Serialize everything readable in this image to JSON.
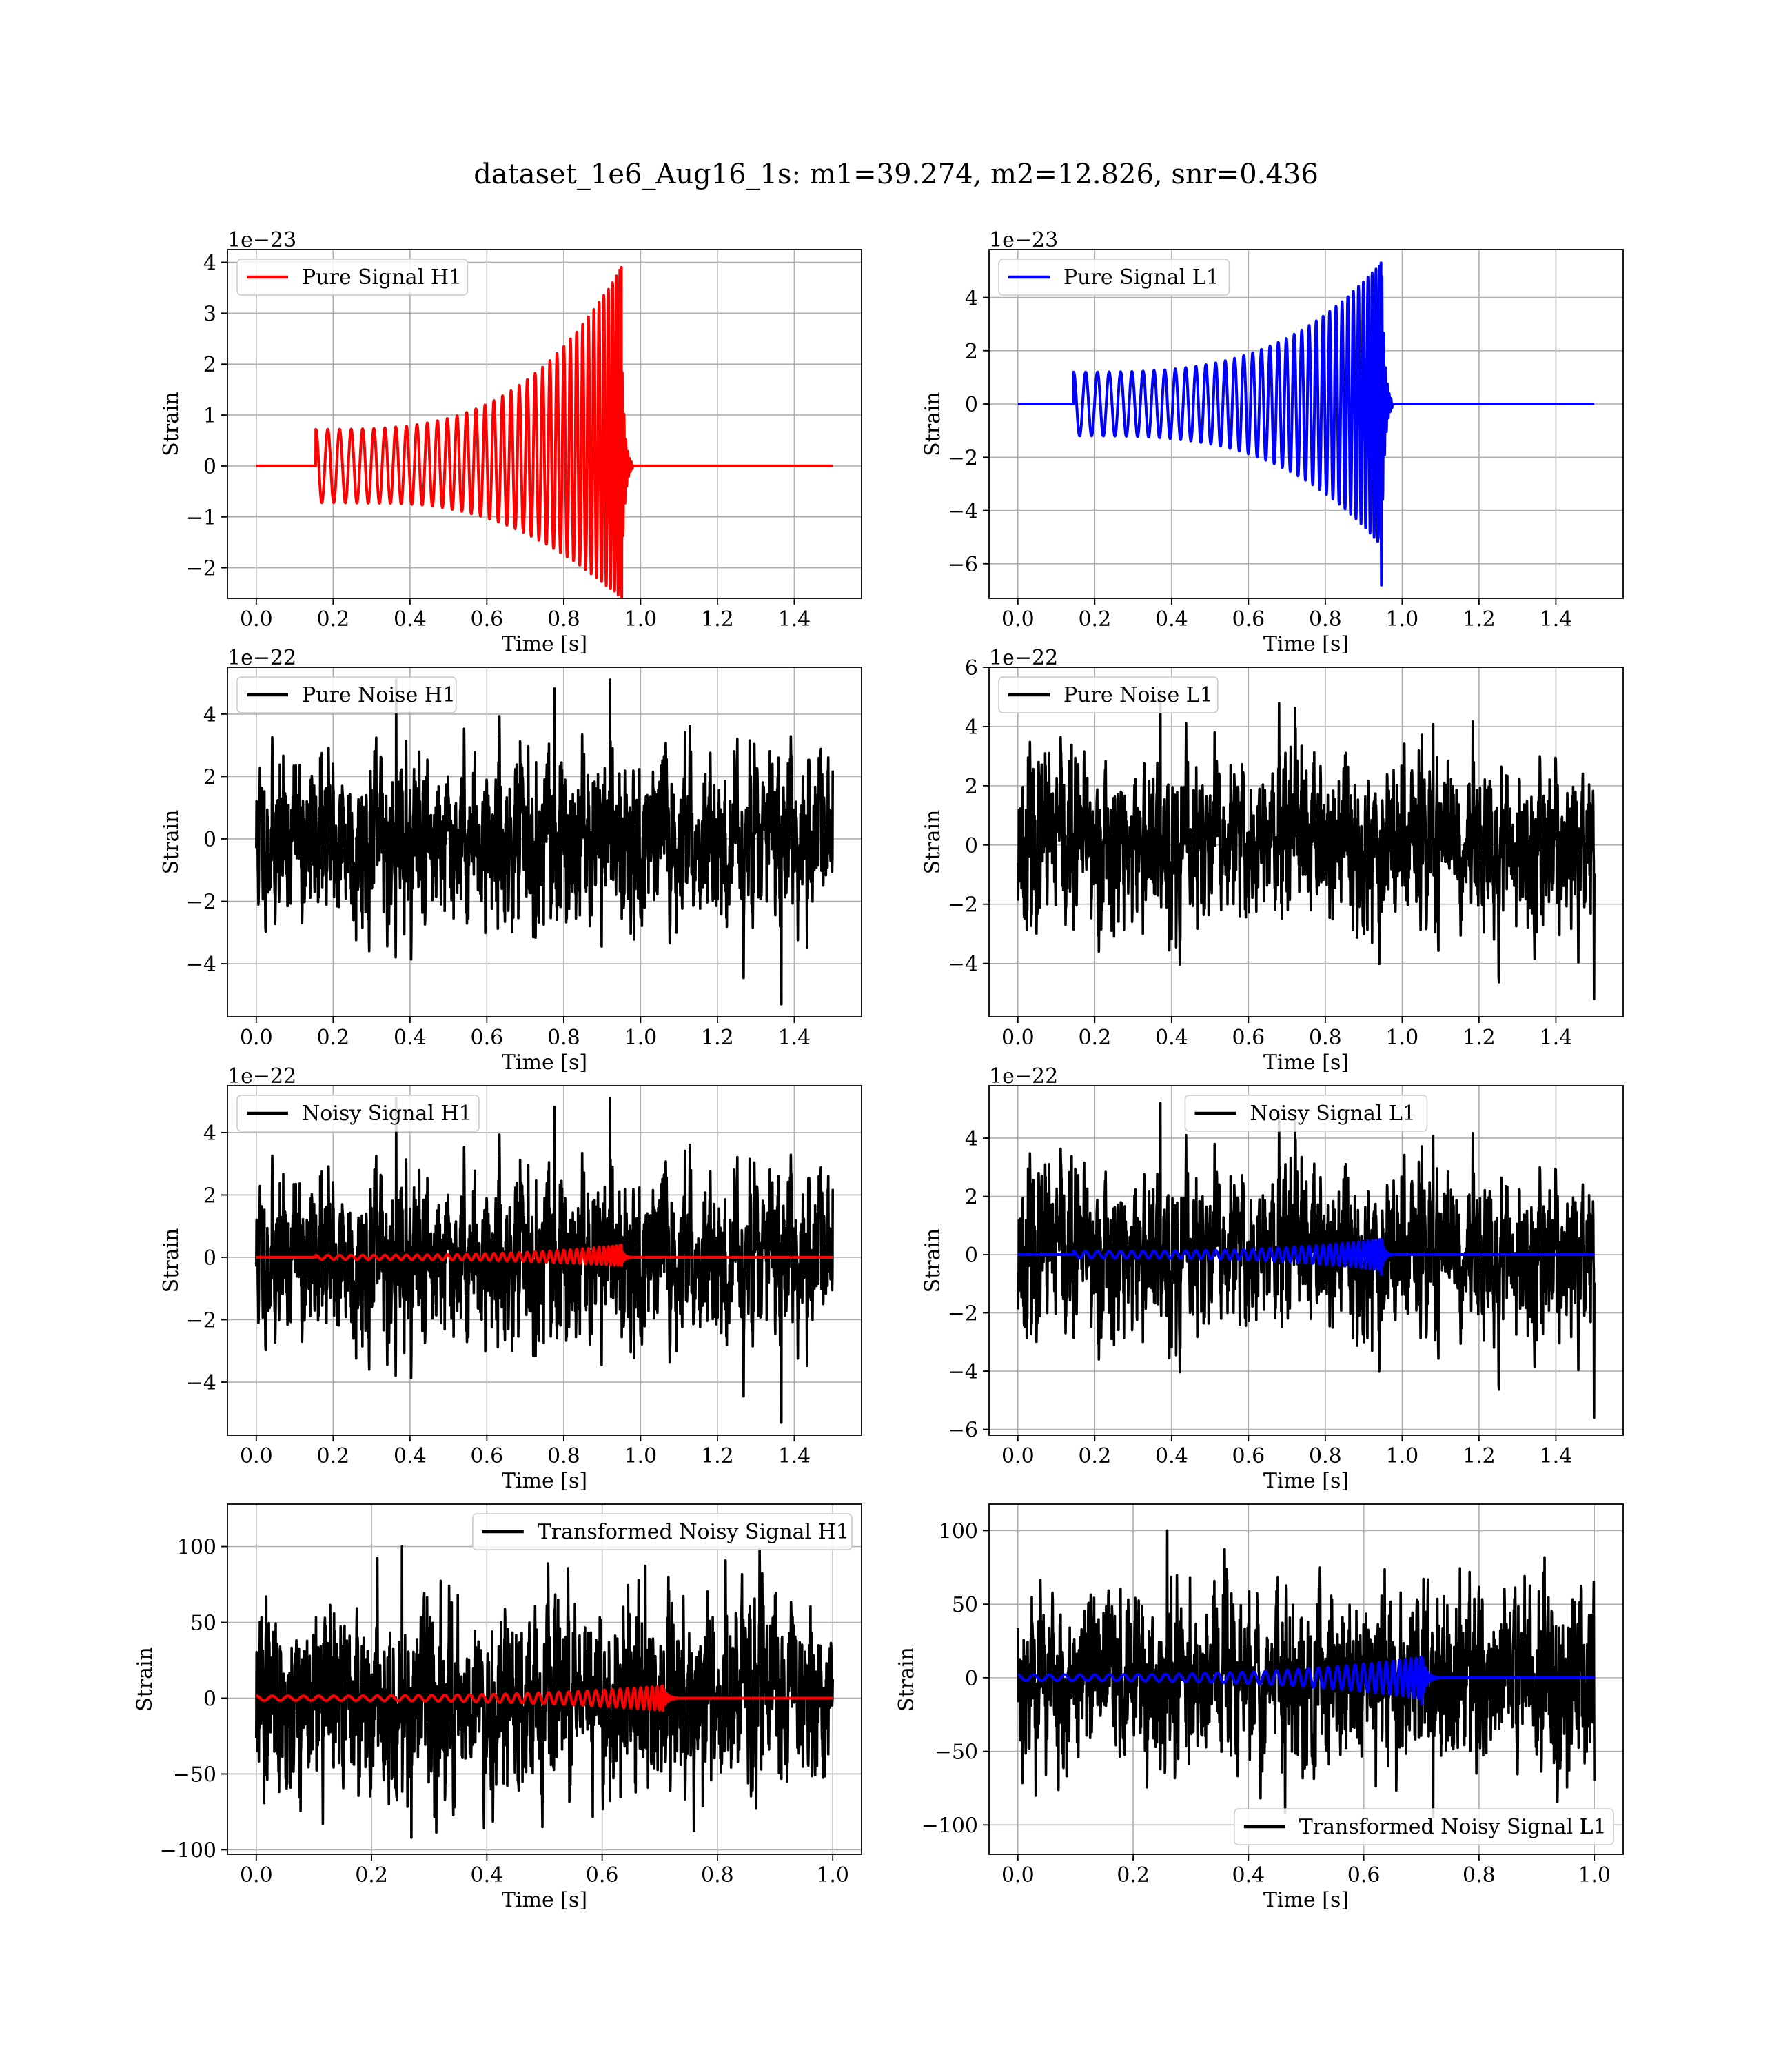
{
  "title": "dataset_1e6_Aug16_1s: m1=39.274, m2=12.826, snr=0.436",
  "colors": {
    "h1_signal": "#ff0000",
    "l1_signal": "#0000ff",
    "noise": "#000000",
    "grid": "#b0b0b0"
  },
  "chart_data": [
    {
      "id": "pure-signal-h1",
      "type": "line",
      "xlabel": "Time [s]",
      "ylabel": "Strain",
      "offset_text": "1e−23",
      "xlim": [
        -0.075,
        1.575
      ],
      "ylim": [
        -2.6,
        4.25
      ],
      "xticks": [
        0.0,
        0.2,
        0.4,
        0.6,
        0.8,
        1.0,
        1.2,
        1.4
      ],
      "xtick_labels": [
        "0.0",
        "0.2",
        "0.4",
        "0.6",
        "0.8",
        "1.0",
        "1.2",
        "1.4"
      ],
      "yticks": [
        -2,
        -1,
        0,
        1,
        2,
        3,
        4
      ],
      "ytick_labels": [
        "−2",
        "−1",
        "0",
        "1",
        "2",
        "3",
        "4"
      ],
      "legend": {
        "label": "Pure Signal H1",
        "loc": "upper left",
        "color": "#ff0000"
      },
      "series": [
        {
          "name": "Pure Signal H1",
          "kind": "chirp",
          "color": "#ff0000",
          "t_start": 0.155,
          "t_merger": 0.95,
          "t_end": 1.5,
          "x_max": 1.5,
          "amp_start": 0.72,
          "amp_peak": 3.9,
          "amp_min_peak": -2.6,
          "cycles": 26
        }
      ]
    },
    {
      "id": "pure-signal-l1",
      "type": "line",
      "xlabel": "Time [s]",
      "ylabel": "Strain",
      "offset_text": "1e−23",
      "xlim": [
        -0.075,
        1.575
      ],
      "ylim": [
        -7.3,
        5.8
      ],
      "xticks": [
        0.0,
        0.2,
        0.4,
        0.6,
        0.8,
        1.0,
        1.2,
        1.4
      ],
      "xtick_labels": [
        "0.0",
        "0.2",
        "0.4",
        "0.6",
        "0.8",
        "1.0",
        "1.2",
        "1.4"
      ],
      "yticks": [
        -6,
        -4,
        -2,
        0,
        2,
        4
      ],
      "ytick_labels": [
        "−6",
        "−4",
        "−2",
        "0",
        "2",
        "4"
      ],
      "legend": {
        "label": "Pure Signal L1",
        "loc": "upper left",
        "color": "#0000ff"
      },
      "series": [
        {
          "name": "Pure Signal L1",
          "kind": "chirp",
          "color": "#0000ff",
          "t_start": 0.145,
          "t_merger": 0.945,
          "t_end": 1.5,
          "x_max": 1.5,
          "amp_start": 1.2,
          "amp_peak": 5.3,
          "amp_min_peak": -6.8,
          "cycles": 26
        }
      ]
    },
    {
      "id": "pure-noise-h1",
      "type": "line",
      "xlabel": "Time [s]",
      "ylabel": "Strain",
      "offset_text": "1e−22",
      "xlim": [
        -0.075,
        1.575
      ],
      "ylim": [
        -5.7,
        5.5
      ],
      "xticks": [
        0.0,
        0.2,
        0.4,
        0.6,
        0.8,
        1.0,
        1.2,
        1.4
      ],
      "xtick_labels": [
        "0.0",
        "0.2",
        "0.4",
        "0.6",
        "0.8",
        "1.0",
        "1.2",
        "1.4"
      ],
      "yticks": [
        -4,
        -2,
        0,
        2,
        4
      ],
      "ytick_labels": [
        "−4",
        "−2",
        "0",
        "2",
        "4"
      ],
      "legend": {
        "label": "Pure Noise H1",
        "loc": "upper left",
        "color": "#000000"
      },
      "series": [
        {
          "name": "Pure Noise H1",
          "kind": "noise",
          "color": "#000000",
          "x_max": 1.5,
          "sigma": 1.25,
          "max": 5.1,
          "min": -5.3,
          "seed": 11
        }
      ]
    },
    {
      "id": "pure-noise-l1",
      "type": "line",
      "xlabel": "Time [s]",
      "ylabel": "Strain",
      "offset_text": "1e−22",
      "xlim": [
        -0.075,
        1.575
      ],
      "ylim": [
        -5.8,
        6.0
      ],
      "xticks": [
        0.0,
        0.2,
        0.4,
        0.6,
        0.8,
        1.0,
        1.2,
        1.4
      ],
      "xtick_labels": [
        "0.0",
        "0.2",
        "0.4",
        "0.6",
        "0.8",
        "1.0",
        "1.2",
        "1.4"
      ],
      "yticks": [
        -4,
        -2,
        0,
        2,
        4,
        6
      ],
      "ytick_labels": [
        "−4",
        "−2",
        "0",
        "2",
        "4",
        "6"
      ],
      "legend": {
        "label": "Pure Noise L1",
        "loc": "upper left",
        "color": "#000000"
      },
      "series": [
        {
          "name": "Pure Noise L1",
          "kind": "noise",
          "color": "#000000",
          "x_max": 1.5,
          "sigma": 1.3,
          "max": 5.2,
          "min": -5.2,
          "seed": 23
        }
      ]
    },
    {
      "id": "noisy-signal-h1",
      "type": "line",
      "xlabel": "Time [s]",
      "ylabel": "Strain",
      "offset_text": "1e−22",
      "xlim": [
        -0.075,
        1.575
      ],
      "ylim": [
        -5.7,
        5.5
      ],
      "xticks": [
        0.0,
        0.2,
        0.4,
        0.6,
        0.8,
        1.0,
        1.2,
        1.4
      ],
      "xtick_labels": [
        "0.0",
        "0.2",
        "0.4",
        "0.6",
        "0.8",
        "1.0",
        "1.2",
        "1.4"
      ],
      "yticks": [
        -4,
        -2,
        0,
        2,
        4
      ],
      "ytick_labels": [
        "−4",
        "−2",
        "0",
        "2",
        "4"
      ],
      "legend": {
        "label": "Noisy Signal H1",
        "loc": "upper left",
        "color": "#000000"
      },
      "series": [
        {
          "name": "Noisy Signal H1",
          "kind": "noise",
          "color": "#000000",
          "x_max": 1.5,
          "sigma": 1.25,
          "max": 5.1,
          "min": -5.3,
          "seed": 11
        },
        {
          "kind": "chirp",
          "color": "#ff0000",
          "t_start": 0.155,
          "t_merger": 0.95,
          "t_end": 1.5,
          "x_max": 1.5,
          "amp_start": 0.07,
          "amp_peak": 0.39,
          "amp_min_peak": -0.26,
          "cycles": 26
        }
      ]
    },
    {
      "id": "noisy-signal-l1",
      "type": "line",
      "xlabel": "Time [s]",
      "ylabel": "Strain",
      "offset_text": "1e−22",
      "xlim": [
        -0.075,
        1.575
      ],
      "ylim": [
        -6.2,
        5.8
      ],
      "xticks": [
        0.0,
        0.2,
        0.4,
        0.6,
        0.8,
        1.0,
        1.2,
        1.4
      ],
      "xtick_labels": [
        "0.0",
        "0.2",
        "0.4",
        "0.6",
        "0.8",
        "1.0",
        "1.2",
        "1.4"
      ],
      "yticks": [
        -6,
        -4,
        -2,
        0,
        2,
        4
      ],
      "ytick_labels": [
        "−6",
        "−4",
        "−2",
        "0",
        "2",
        "4"
      ],
      "legend": {
        "label": "Noisy Signal L1",
        "loc": "upper center",
        "color": "#000000"
      },
      "series": [
        {
          "name": "Noisy Signal L1",
          "kind": "noise",
          "color": "#000000",
          "x_max": 1.5,
          "sigma": 1.3,
          "max": 5.2,
          "min": -5.6,
          "seed": 23
        },
        {
          "kind": "chirp",
          "color": "#0000ff",
          "t_start": 0.145,
          "t_merger": 0.945,
          "t_end": 1.5,
          "x_max": 1.5,
          "amp_start": 0.12,
          "amp_peak": 0.53,
          "amp_min_peak": -0.68,
          "cycles": 26
        }
      ]
    },
    {
      "id": "transformed-noisy-signal-h1",
      "type": "line",
      "xlabel": "Time [s]",
      "ylabel": "Strain",
      "offset_text": "",
      "xlim": [
        -0.05,
        1.05
      ],
      "ylim": [
        -103,
        128
      ],
      "xticks": [
        0.0,
        0.2,
        0.4,
        0.6,
        0.8,
        1.0
      ],
      "xtick_labels": [
        "0.0",
        "0.2",
        "0.4",
        "0.6",
        "0.8",
        "1.0"
      ],
      "yticks": [
        -100,
        -50,
        0,
        50,
        100
      ],
      "ytick_labels": [
        "−100",
        "−50",
        "0",
        "50",
        "100"
      ],
      "legend": {
        "label": "Transformed Noisy Signal H1",
        "loc": "upper right",
        "color": "#000000"
      },
      "series": [
        {
          "name": "Transformed Noisy Signal H1",
          "kind": "noise",
          "color": "#000000",
          "x_max": 1.0,
          "sigma": 28,
          "max": 100,
          "min": -92,
          "seed": 37
        },
        {
          "kind": "chirp",
          "color": "#ff0000",
          "t_start": 0.0,
          "t_merger": 0.705,
          "t_end": 1.0,
          "x_max": 1.0,
          "amp_start": 1.5,
          "amp_peak": 8,
          "amp_min_peak": -8,
          "cycles": 26
        }
      ]
    },
    {
      "id": "transformed-noisy-signal-l1",
      "type": "line",
      "xlabel": "Time [s]",
      "ylabel": "Strain",
      "offset_text": "",
      "xlim": [
        -0.05,
        1.05
      ],
      "ylim": [
        -120,
        118
      ],
      "xticks": [
        0.0,
        0.2,
        0.4,
        0.6,
        0.8,
        1.0
      ],
      "xtick_labels": [
        "0.0",
        "0.2",
        "0.4",
        "0.6",
        "0.8",
        "1.0"
      ],
      "yticks": [
        -100,
        -50,
        0,
        50,
        100
      ],
      "ytick_labels": [
        "−100",
        "−50",
        "0",
        "50",
        "100"
      ],
      "legend": {
        "label": "Transformed Noisy Signal L1",
        "loc": "lower right",
        "color": "#000000"
      },
      "series": [
        {
          "name": "Transformed Noisy Signal L1",
          "kind": "noise",
          "color": "#000000",
          "x_max": 1.0,
          "sigma": 28,
          "max": 100,
          "min": -95,
          "seed": 53
        },
        {
          "kind": "chirp",
          "color": "#0000ff",
          "t_start": 0.0,
          "t_merger": 0.7,
          "t_end": 1.0,
          "x_max": 1.0,
          "amp_start": 2,
          "amp_peak": 14,
          "amp_min_peak": -18,
          "cycles": 26
        }
      ]
    }
  ]
}
